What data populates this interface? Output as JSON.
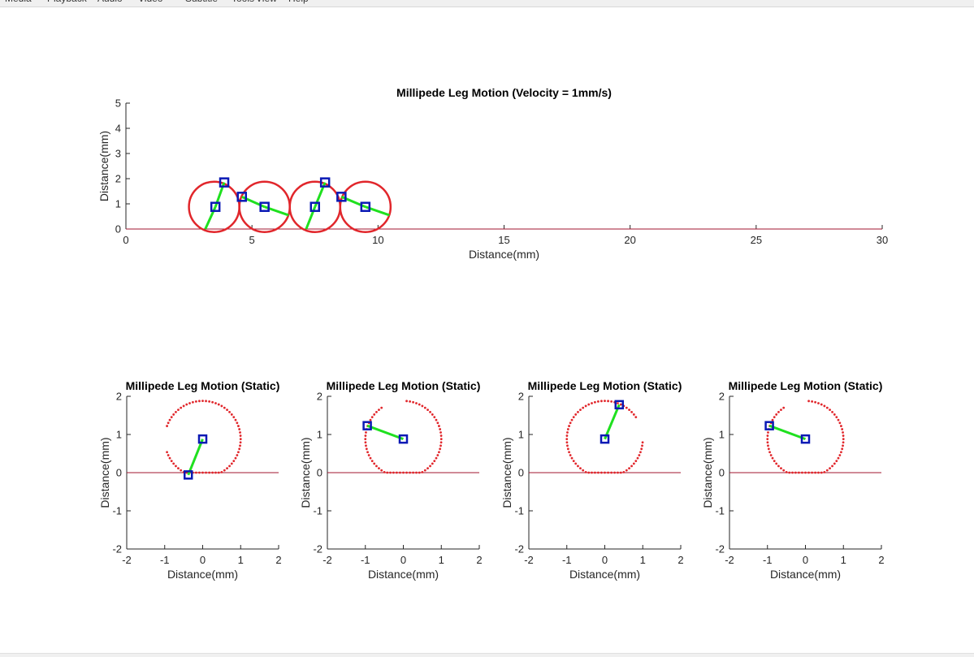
{
  "menubar": {
    "items": [
      "Media",
      "Playback",
      "Audio",
      "Video",
      "Subtitle",
      "Tools",
      "View",
      "Help"
    ]
  },
  "colors": {
    "ground": "#a2142f",
    "trajectory": "#e1262b",
    "leg": "#1fe01f",
    "joint": "#0a19b4",
    "axis": "#262626"
  },
  "chart_data": [
    {
      "type": "line",
      "title": "Millipede Leg Motion (Velocity = 1mm/s)",
      "xlabel": "Distance(mm)",
      "ylabel": "Distance(mm)",
      "xlim": [
        0,
        30
      ],
      "ylim": [
        0,
        5
      ],
      "xticks": [
        0,
        5,
        10,
        15,
        20,
        25,
        30
      ],
      "yticks": [
        0,
        1,
        2,
        3,
        4,
        5
      ],
      "grid": false,
      "ground_y": 0,
      "circles": [
        {
          "cx": 3.5,
          "cy": 0.88,
          "r": 1.0
        },
        {
          "cx": 5.5,
          "cy": 0.88,
          "r": 1.0
        },
        {
          "cx": 7.5,
          "cy": 0.88,
          "r": 1.0
        },
        {
          "cx": 9.5,
          "cy": 0.88,
          "r": 1.0
        }
      ],
      "legs": [
        {
          "hip": [
            3.55,
            0.88
          ],
          "knee": [
            3.9,
            1.85
          ],
          "foot": [
            3.15,
            0.0
          ]
        },
        {
          "hip": [
            5.5,
            0.88
          ],
          "knee": [
            4.6,
            1.28
          ],
          "foot": [
            6.45,
            0.55
          ]
        },
        {
          "hip": [
            7.5,
            0.88
          ],
          "knee": [
            7.9,
            1.85
          ],
          "foot": [
            7.15,
            0.0
          ]
        },
        {
          "hip": [
            9.5,
            0.88
          ],
          "knee": [
            8.55,
            1.28
          ],
          "foot": [
            10.45,
            0.55
          ]
        }
      ]
    },
    {
      "type": "scatter",
      "title": "Millipede Leg Motion (Static)",
      "xlabel": "Distance(mm)",
      "ylabel": "Distance(mm)",
      "xlim": [
        -2,
        2
      ],
      "ylim": [
        -2,
        2
      ],
      "xticks": [
        -2,
        -1,
        0,
        1,
        2
      ],
      "yticks": [
        -2,
        -1,
        0,
        1,
        2
      ],
      "ground_y": 0,
      "trajectory_start_deg": 160,
      "trajectory_span_deg": 320,
      "hip": [
        0,
        0.88
      ],
      "knee": [
        -0.38,
        -0.06
      ]
    },
    {
      "type": "scatter",
      "title": "Millipede Leg Motion (Static)",
      "xlabel": "Distance(mm)",
      "ylabel": "Distance(mm)",
      "xlim": [
        -2,
        2
      ],
      "ylim": [
        -2,
        2
      ],
      "xticks": [
        -2,
        -1,
        0,
        1,
        2
      ],
      "yticks": [
        -2,
        -1,
        0,
        1,
        2
      ],
      "ground_y": 0,
      "trajectory_start_deg": 85,
      "trajectory_span_deg": 320,
      "hip": [
        0,
        0.88
      ],
      "knee": [
        -0.95,
        1.23
      ]
    },
    {
      "type": "scatter",
      "title": "Millipede Leg Motion (Static)",
      "xlabel": "Distance(mm)",
      "ylabel": "Distance(mm)",
      "xlim": [
        -2,
        2
      ],
      "ylim": [
        -2,
        2
      ],
      "xticks": [
        -2,
        -1,
        0,
        1,
        2
      ],
      "yticks": [
        -2,
        -1,
        0,
        1,
        2
      ],
      "ground_y": 0,
      "trajectory_start_deg": -5,
      "trajectory_span_deg": 320,
      "hip": [
        0,
        0.88
      ],
      "knee": [
        0.38,
        1.78
      ]
    },
    {
      "type": "scatter",
      "title": "Millipede Leg Motion (Static)",
      "xlabel": "Distance(mm)",
      "ylabel": "Distance(mm)",
      "xlim": [
        -2,
        2
      ],
      "ylim": [
        -2,
        2
      ],
      "xticks": [
        -2,
        -1,
        0,
        1,
        2
      ],
      "yticks": [
        -2,
        -1,
        0,
        1,
        2
      ],
      "ground_y": 0,
      "trajectory_start_deg": 85,
      "trajectory_span_deg": 320,
      "hip": [
        0,
        0.88
      ],
      "knee": [
        -0.95,
        1.23
      ]
    }
  ]
}
